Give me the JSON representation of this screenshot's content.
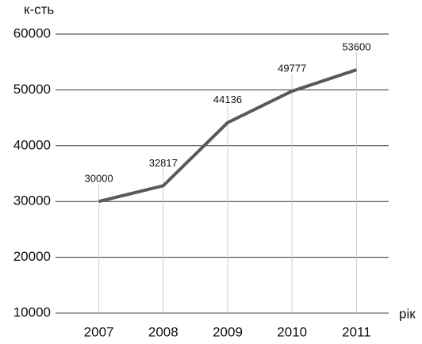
{
  "chart_data": {
    "type": "line",
    "y_label": "к-сть",
    "x_label": "рік",
    "categories": [
      "2007",
      "2008",
      "2009",
      "2010",
      "2011"
    ],
    "values": [
      30000,
      32817,
      44136,
      49777,
      53600
    ],
    "color": "#595959",
    "ylim": [
      10000,
      60000
    ],
    "yticks": [
      10000,
      20000,
      30000,
      40000,
      50000,
      60000
    ],
    "grid": true
  }
}
